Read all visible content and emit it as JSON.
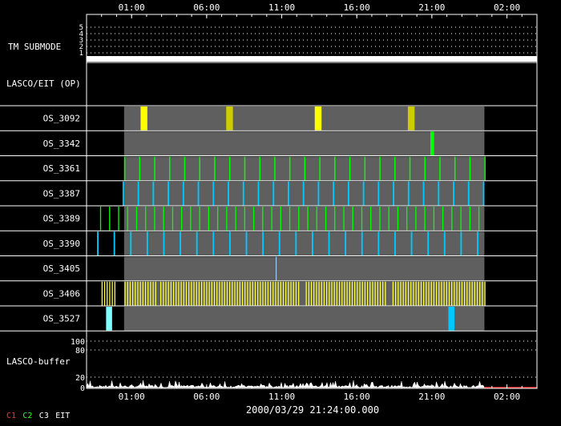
{
  "time_axis": {
    "ticks": [
      "01:00",
      "06:00",
      "11:00",
      "16:00",
      "21:00",
      "02:00"
    ],
    "tick_hours": [
      1,
      6,
      11,
      16,
      21,
      26
    ],
    "range_hours": [
      -2,
      28
    ],
    "timestamp": "2000/03/29 21:24:00.000"
  },
  "tm_submode": {
    "label": "TM SUBMODE",
    "levels": [
      "5",
      "4",
      "3",
      "2",
      "1"
    ],
    "current_level": 1
  },
  "lasco_eit_header": {
    "label": "LASCO/EIT (OP)"
  },
  "rows": [
    {
      "label": "OS_3092",
      "active_range": [
        0.5,
        24.5
      ],
      "events": [
        {
          "t": 1.6,
          "w": 0.45,
          "color": "#ffff00"
        },
        {
          "t": 7.3,
          "w": 0.45,
          "color": "#cccc00"
        },
        {
          "t": 13.2,
          "w": 0.45,
          "color": "#ffff00"
        },
        {
          "t": 19.4,
          "w": 0.45,
          "color": "#cccc00"
        }
      ]
    },
    {
      "label": "OS_3342",
      "active_range": [
        0.5,
        24.5
      ],
      "events": [
        {
          "t": 20.9,
          "w": 0.25,
          "color": "#00ff00"
        }
      ]
    },
    {
      "label": "OS_3361",
      "active_range": [
        0.5,
        24.5
      ],
      "pattern": {
        "start": 0.5,
        "end": 24.5,
        "step": 1.0,
        "w": 0.08,
        "color": "#00ff00"
      }
    },
    {
      "label": "OS_3387",
      "active_range": [
        0.5,
        24.5
      ],
      "pattern": {
        "start": 0.4,
        "end": 24.4,
        "step": 1.0,
        "w": 0.1,
        "color": "#00c8ff"
      }
    },
    {
      "label": "OS_3389",
      "active_range": [
        0.5,
        24.5
      ],
      "pattern": {
        "start": -1.1,
        "end": 24.2,
        "step": 0.6,
        "w": 0.07,
        "color": "#00ff00"
      }
    },
    {
      "label": "OS_3390",
      "active_range": [
        0.5,
        24.5
      ],
      "pattern": {
        "start": -1.3,
        "end": 24.4,
        "step": 1.1,
        "w": 0.1,
        "color": "#00c8ff"
      }
    },
    {
      "label": "OS_3405",
      "active_range": [
        0.5,
        24.5
      ],
      "events": [
        {
          "t": 10.6,
          "w": 0.06,
          "color": "#a0d0ff"
        }
      ]
    },
    {
      "label": "OS_3406",
      "active_range": [
        0.5,
        24.5
      ],
      "pattern": {
        "start": -1.0,
        "end": 24.5,
        "step": 0.17,
        "w": 0.07,
        "color": "#ffff40",
        "gaps": [
          [
            0.0,
            0.4
          ],
          [
            2.6,
            2.9
          ],
          [
            12.2,
            12.5
          ],
          [
            17.9,
            18.3
          ]
        ]
      }
    },
    {
      "label": "OS_3527",
      "active_range": [
        0.5,
        24.5
      ],
      "events": [
        {
          "t": -0.7,
          "w": 0.4,
          "color": "#80ffff"
        },
        {
          "t": 22.1,
          "w": 0.4,
          "color": "#00c8ff"
        }
      ]
    }
  ],
  "buffer": {
    "label": "LASCO-buffer",
    "gridlines": [
      "100",
      "80"
    ],
    "low_labels": [
      "20",
      "0"
    ],
    "trace_end_hours": 24.5
  },
  "legend": [
    {
      "label": "C1",
      "color": "#ff3030"
    },
    {
      "label": "C2",
      "color": "#30ff30"
    },
    {
      "label": "C3",
      "color": "#ffffff"
    },
    {
      "label": "EIT",
      "color": "#ffffff"
    }
  ]
}
